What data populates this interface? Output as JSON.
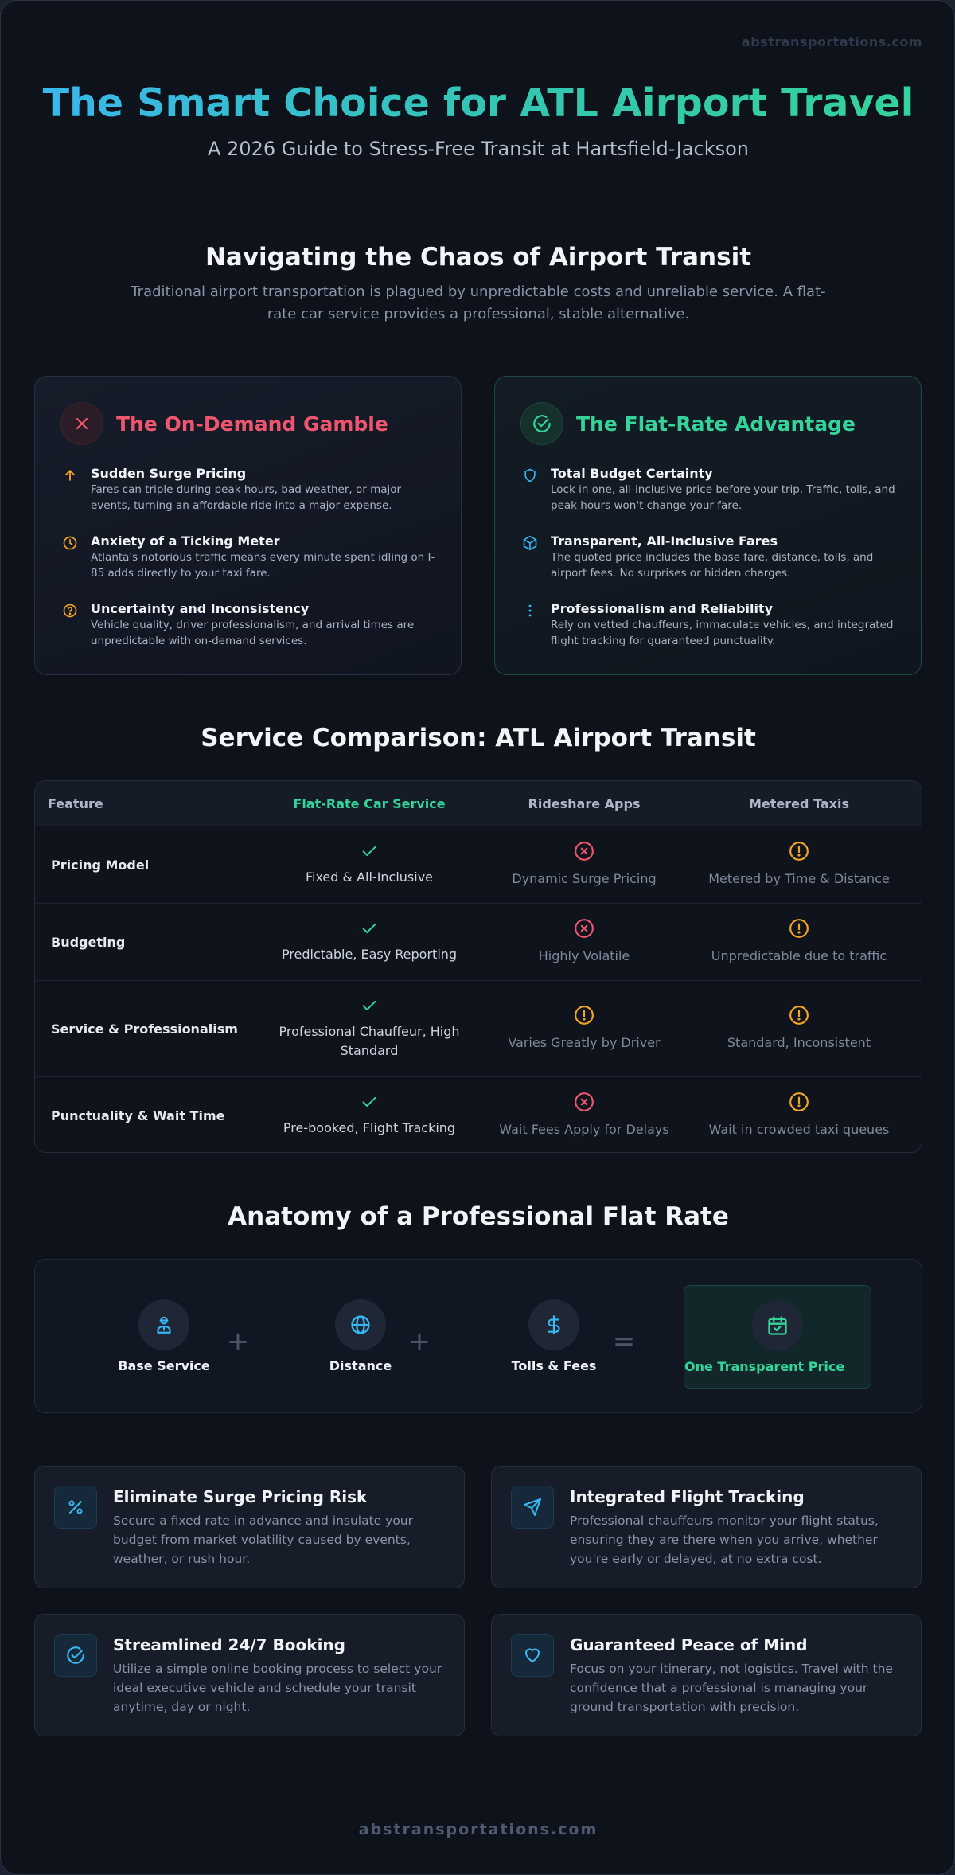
{
  "site": {
    "watermark": "abstransportations.com",
    "footer": "abstransportations.com"
  },
  "hero": {
    "title": "The Smart Choice for ATL Airport Travel",
    "subtitle": "A 2026 Guide to Stress-Free Transit at Hartsfield-Jackson"
  },
  "intro": {
    "title": "Navigating the Chaos of Airport Transit",
    "description": "Traditional airport transportation is plagued by unpredictable costs and unreliable service. A flat-rate car service provides a professional, stable alternative."
  },
  "colors": {
    "accent_green": "#34d399",
    "accent_red": "#f0556f",
    "accent_blue": "#38b6f0",
    "accent_amber": "#f5a524"
  },
  "on_demand": {
    "title": "The On-Demand Gamble",
    "icon": "x-icon",
    "points": [
      {
        "icon": "arrow-up-icon",
        "title": "Sudden Surge Pricing",
        "text": "Fares can triple during peak hours, bad weather, or major events, turning an affordable ride into a major expense."
      },
      {
        "icon": "clock-icon",
        "title": "Anxiety of a Ticking Meter",
        "text": "Atlanta's notorious traffic means every minute spent idling on I-85 adds directly to your taxi fare."
      },
      {
        "icon": "question-icon",
        "title": "Uncertainty and Inconsistency",
        "text": "Vehicle quality, driver professionalism, and arrival times are unpredictable with on-demand services."
      }
    ]
  },
  "flat_rate": {
    "title": "The Flat-Rate Advantage",
    "icon": "check-circle-icon",
    "points": [
      {
        "icon": "shield-icon",
        "title": "Total Budget Certainty",
        "text": "Lock in one, all-inclusive price before your trip. Traffic, tolls, and peak hours won't change your fare."
      },
      {
        "icon": "box-icon",
        "title": "Transparent, All-Inclusive Fares",
        "text": "The quoted price includes the base fare, distance, tolls, and airport fees. No surprises or hidden charges."
      },
      {
        "icon": "more-vertical-icon",
        "title": "Professionalism and Reliability",
        "text": "Rely on vetted chauffeurs, immaculate vehicles, and integrated flight tracking for guaranteed punctuality."
      }
    ]
  },
  "comparison": {
    "title": "Service Comparison: ATL Airport Transit",
    "headers": [
      "Feature",
      "Flat-Rate Car Service",
      "Rideshare Apps",
      "Metered Taxis"
    ],
    "rows": [
      {
        "feature": "Pricing Model",
        "cells": [
          {
            "status": "check",
            "text": "Fixed & All-Inclusive"
          },
          {
            "status": "x",
            "text": "Dynamic Surge Pricing"
          },
          {
            "status": "alert",
            "text": "Metered by Time & Distance"
          }
        ]
      },
      {
        "feature": "Budgeting",
        "cells": [
          {
            "status": "check",
            "text": "Predictable, Easy Reporting"
          },
          {
            "status": "x",
            "text": "Highly Volatile"
          },
          {
            "status": "alert",
            "text": "Unpredictable due to traffic"
          }
        ]
      },
      {
        "feature": "Service & Professionalism",
        "cells": [
          {
            "status": "check",
            "text": "Professional Chauffeur, High Standard"
          },
          {
            "status": "alert",
            "text": "Varies Greatly by Driver"
          },
          {
            "status": "alert",
            "text": "Standard, Inconsistent"
          }
        ]
      },
      {
        "feature": "Punctuality & Wait Time",
        "cells": [
          {
            "status": "check",
            "text": "Pre-booked, Flight Tracking"
          },
          {
            "status": "x",
            "text": "Wait Fees Apply for Delays"
          },
          {
            "status": "alert",
            "text": "Wait in crowded taxi queues"
          }
        ]
      }
    ]
  },
  "anatomy": {
    "title": "Anatomy of a Professional Flat Rate",
    "items": [
      {
        "icon": "chauffeur-icon",
        "label": "Base Service"
      },
      {
        "icon": "globe-icon",
        "label": "Distance"
      },
      {
        "icon": "dollar-icon",
        "label": "Tolls & Fees"
      }
    ],
    "operators": [
      "+",
      "+",
      "="
    ],
    "total": {
      "icon": "calendar-check-icon",
      "label": "One Transparent Price"
    }
  },
  "features": [
    {
      "icon": "percent-icon",
      "title": "Eliminate Surge Pricing Risk",
      "text": "Secure a fixed rate in advance and insulate your budget from market volatility caused by events, weather, or rush hour."
    },
    {
      "icon": "send-icon",
      "title": "Integrated Flight Tracking",
      "text": "Professional chauffeurs monitor your flight status, ensuring they are there when you arrive, whether you're early or delayed, at no extra cost."
    },
    {
      "icon": "check-circle-icon",
      "title": "Streamlined 24/7 Booking",
      "text": "Utilize a simple online booking process to select your ideal executive vehicle and schedule your transit anytime, day or night."
    },
    {
      "icon": "heart-icon",
      "title": "Guaranteed Peace of Mind",
      "text": "Focus on your itinerary, not logistics. Travel with the confidence that a professional is managing your ground transportation with precision."
    }
  ]
}
